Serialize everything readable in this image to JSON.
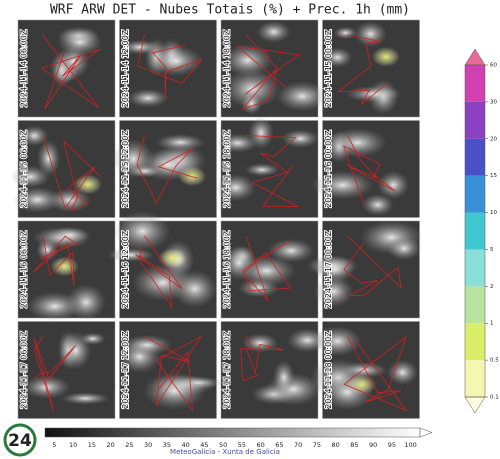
{
  "title": "WRF ARW DET  -  Nubes Totais (%) + Prec. 1h (mm)",
  "panels": [
    "2024-11-14 06:00Z",
    "2024-11-14 12:00Z",
    "2024-11-14 18:00Z",
    "2024-11-15 00:00Z",
    "2024-11-15 06:00Z",
    "2024-11-15 12:00Z",
    "2024-11-15 18:00Z",
    "2024-11-16 00:00Z",
    "2024-11-16 06:00Z",
    "2024-11-16 12:00Z",
    "2024-11-16 18:00Z",
    "2024-11-17 00:00Z",
    "2024-11-17 06:00Z",
    "2024-11-17 12:00Z",
    "2024-11-17 18:00Z",
    "2024-11-18 00:00Z"
  ],
  "precip_ticks": [
    0.1,
    0.5,
    1,
    2,
    5,
    10,
    15,
    20,
    30,
    60
  ],
  "cloud_ticks": [
    5,
    10,
    15,
    20,
    25,
    30,
    35,
    40,
    45,
    50,
    55,
    60,
    65,
    70,
    75,
    80,
    85,
    90,
    95,
    100
  ],
  "footer": "MeteoGalicia - Xunta de Galicia",
  "logo": "24"
}
